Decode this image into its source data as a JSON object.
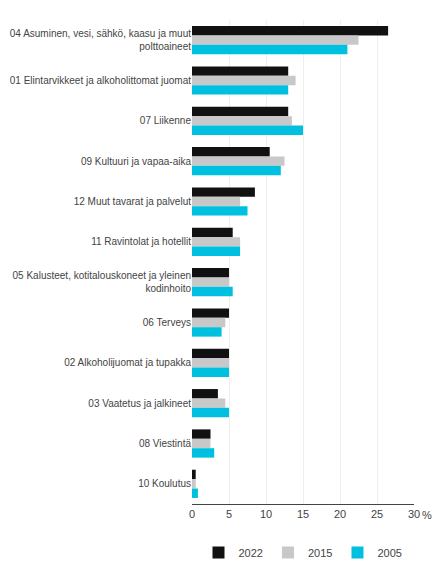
{
  "chart_data": {
    "type": "bar",
    "orientation": "horizontal",
    "categories": [
      "04 Asuminen, vesi, sähkö, kaasu ja muut\npolttoaineet",
      "01 Elintarvikkeet ja alkoholittomat juomat",
      "07 Liikenne",
      "09 Kultuuri ja vapaa-aika",
      "12 Muut tavarat ja palvelut",
      "11 Ravintolat ja hotellit",
      "05 Kalusteet, kotitalouskoneet ja yleinen\nkodinhoito",
      "06 Terveys",
      "02 Alkoholijuomat ja tupakka",
      "03 Vaatetus ja jalkineet",
      "08 Viestintä",
      "10 Koulutus"
    ],
    "series": [
      {
        "name": "2022",
        "color": "#111111",
        "values": [
          26.5,
          13.0,
          13.0,
          10.5,
          8.5,
          5.5,
          5.0,
          5.0,
          5.0,
          3.5,
          2.5,
          0.5
        ]
      },
      {
        "name": "2015",
        "color": "#c8c8c8",
        "values": [
          22.5,
          14.0,
          13.5,
          12.5,
          6.5,
          6.5,
          5.0,
          4.5,
          5.0,
          4.5,
          2.5,
          0.5
        ]
      },
      {
        "name": "2005",
        "color": "#00c0e0",
        "values": [
          21.0,
          13.0,
          15.0,
          12.0,
          7.5,
          6.5,
          5.5,
          4.0,
          5.0,
          5.0,
          3.0,
          0.8
        ]
      }
    ],
    "xlabel": "%",
    "xlim": [
      0,
      30
    ],
    "xticks": [
      0,
      5,
      10,
      15,
      20,
      25,
      30
    ],
    "grid": true,
    "legend": "bottom"
  }
}
